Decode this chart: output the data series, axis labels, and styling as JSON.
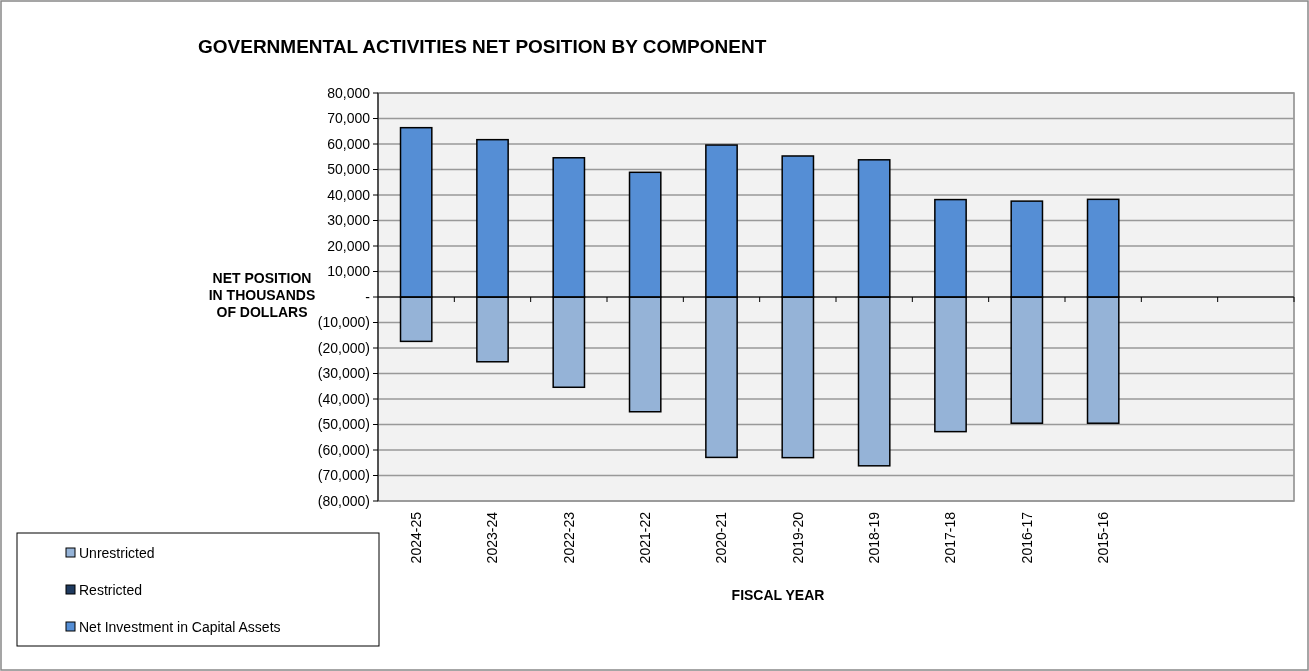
{
  "chart_data": {
    "type": "bar",
    "title": "GOVERNMENTAL ACTIVITIES NET POSITION BY COMPONENT",
    "xlabel": "FISCAL YEAR",
    "ylabel": "NET POSITION\nIN THOUSANDS\nOF DOLLARS",
    "stacked": true,
    "grid": "y",
    "legend": "bottom left",
    "categories": [
      "2024-25",
      "2023-24",
      "2022-23",
      "2021-22",
      "2020-21",
      "2019-20",
      "2018-19",
      "2017-18",
      "2016-17",
      "2015-16",
      null,
      null
    ],
    "series": [
      {
        "name": "Unrestricted",
        "color": "#95b3d7",
        "values": [
          -17400,
          -25400,
          -35400,
          -45000,
          -62900,
          -63000,
          -66200,
          -52800,
          -49500,
          -49500,
          null,
          null
        ]
      },
      {
        "name": "Restricted",
        "color": "#1f3a5f",
        "values": [
          0,
          0,
          0,
          0,
          0,
          0,
          0,
          0,
          0,
          0,
          null,
          null
        ]
      },
      {
        "name": "Net Investment in Capital Assets",
        "color": "#558ed5",
        "values": [
          66400,
          61700,
          54600,
          48900,
          59600,
          55300,
          53800,
          38200,
          37600,
          38300,
          null,
          null
        ]
      }
    ],
    "ylim": [
      -80000,
      80000
    ],
    "yticks": [
      {
        "value": 80000,
        "label": "80,000"
      },
      {
        "value": 70000,
        "label": "70,000"
      },
      {
        "value": 60000,
        "label": "60,000"
      },
      {
        "value": 50000,
        "label": "50,000"
      },
      {
        "value": 40000,
        "label": "40,000"
      },
      {
        "value": 30000,
        "label": "30,000"
      },
      {
        "value": 20000,
        "label": "20,000"
      },
      {
        "value": 10000,
        "label": "10,000"
      },
      {
        "value": 0,
        "label": "-"
      },
      {
        "value": -10000,
        "label": "(10,000)"
      },
      {
        "value": -20000,
        "label": "(20,000)"
      },
      {
        "value": -30000,
        "label": "(30,000)"
      },
      {
        "value": -40000,
        "label": "(40,000)"
      },
      {
        "value": -50000,
        "label": "(50,000)"
      },
      {
        "value": -60000,
        "label": "(60,000)"
      },
      {
        "value": -70000,
        "label": "(70,000)"
      },
      {
        "value": -80000,
        "label": "(80,000)"
      }
    ]
  }
}
